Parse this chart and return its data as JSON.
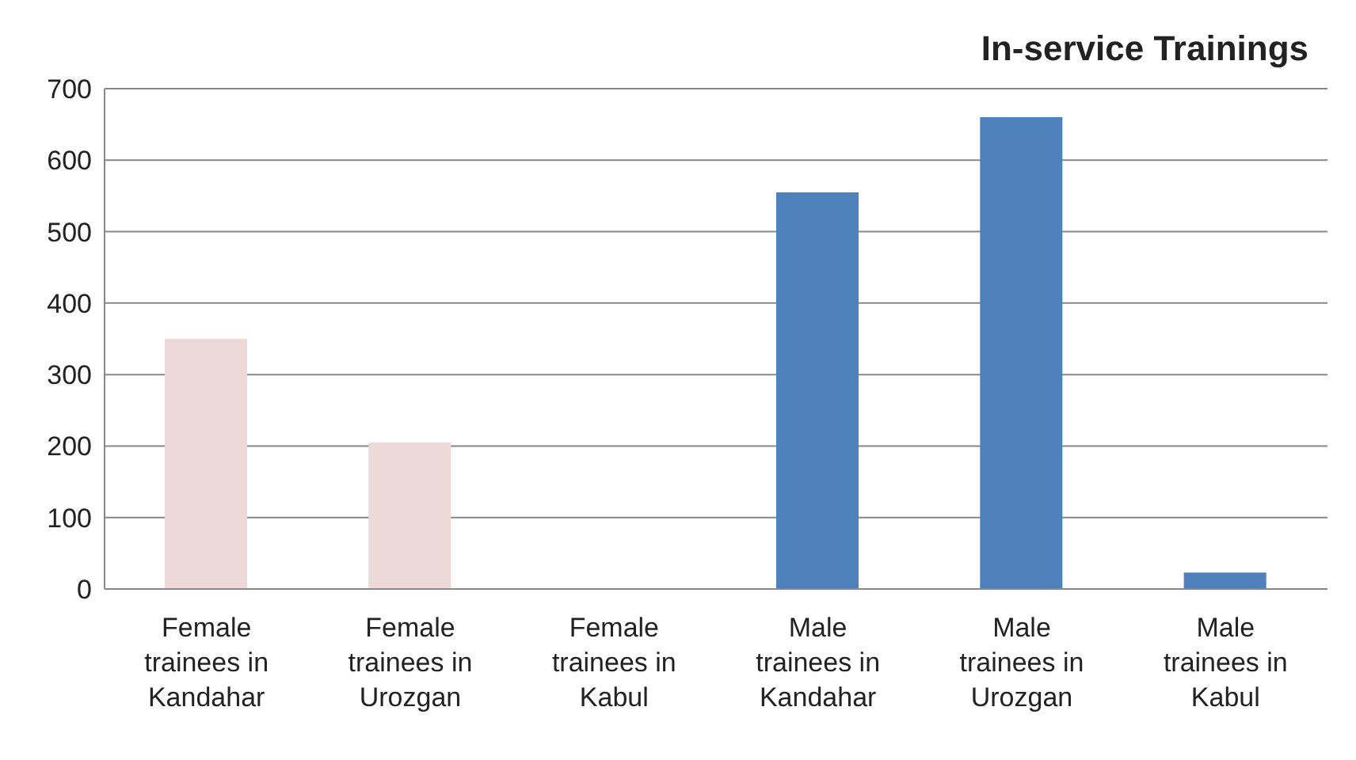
{
  "chart_data": {
    "type": "bar",
    "title": "In-service Trainings",
    "categories": [
      "Female trainees in Kandahar",
      "Female trainees in Urozgan",
      "Female trainees in Kabul",
      "Male trainees in Kandahar",
      "Male trainees in Urozgan",
      "Male trainees in Kabul"
    ],
    "values": [
      350,
      205,
      0,
      555,
      660,
      23
    ],
    "colors": [
      "#eed9d9",
      "#eed9d9",
      "#eed9d9",
      "#4f81bd",
      "#4f81bd",
      "#4f81bd"
    ],
    "ylim": [
      0,
      700
    ],
    "yticks": [
      0,
      100,
      200,
      300,
      400,
      500,
      600,
      700
    ],
    "grid": "y"
  }
}
